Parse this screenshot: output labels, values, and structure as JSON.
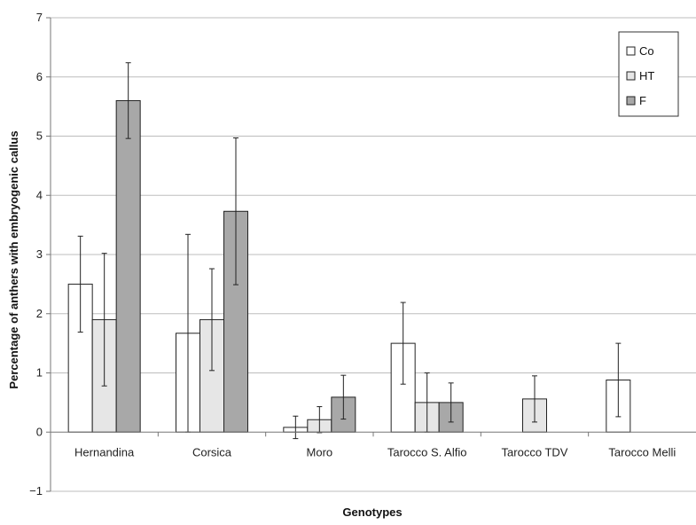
{
  "chart_data": {
    "type": "bar",
    "title": "",
    "xlabel": "Genotypes",
    "ylabel": "Percentage of anthers with embryogenic callus",
    "ylim": [
      -1,
      7
    ],
    "yticks": [
      -1,
      0,
      1,
      2,
      3,
      4,
      5,
      6,
      7
    ],
    "grid": true,
    "legend_position": "top-right",
    "categories": [
      "Hernandina",
      "Corsica",
      "Moro",
      "Tarocco S. Alfio",
      "Tarocco TDV",
      "Tarocco Melli"
    ],
    "series": [
      {
        "name": "Co",
        "color": "#ffffff",
        "values": [
          2.5,
          1.67,
          0.08,
          1.5,
          0,
          0.88
        ],
        "errors": [
          0.81,
          1.67,
          0.19,
          0.69,
          0,
          0.62
        ]
      },
      {
        "name": "HT",
        "color": "#e6e6e6",
        "values": [
          1.9,
          1.9,
          0.21,
          0.5,
          0.56,
          0
        ],
        "errors": [
          1.12,
          0.86,
          0.22,
          0.5,
          0.39,
          0
        ]
      },
      {
        "name": "F",
        "color": "#a8a8a8",
        "values": [
          5.6,
          3.73,
          0.59,
          0.5,
          0,
          0
        ],
        "errors": [
          0.64,
          1.24,
          0.37,
          0.33,
          0,
          0
        ]
      }
    ]
  }
}
